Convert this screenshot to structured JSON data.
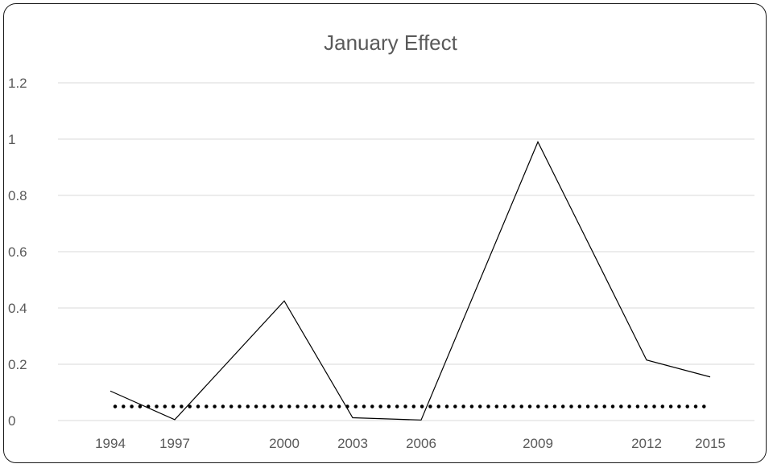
{
  "chart_data": {
    "type": "line",
    "title": "January Effect",
    "xlabel": "",
    "ylabel": "",
    "x": [
      1994,
      1997,
      2000,
      2003,
      2006,
      2009,
      2012,
      2015
    ],
    "xlim": [
      1994,
      2015
    ],
    "ylim": [
      0,
      1.2
    ],
    "x_ticks": [
      "1994",
      "1997",
      "2000",
      "2003",
      "2006",
      "2009",
      "2012",
      "2015"
    ],
    "y_ticks": [
      "0",
      "0.2",
      "0.4",
      "0.6",
      "0.8",
      "1",
      "1.2"
    ],
    "y_tick_values": [
      0,
      0.2,
      0.4,
      0.6,
      0.8,
      1.0,
      1.2
    ],
    "grid": true,
    "legend": "none",
    "series": [
      {
        "style": "solid",
        "color": "#000000",
        "values": [
          0.105,
          0.003,
          0.425,
          0.01,
          0.002,
          0.99,
          0.215,
          0.155
        ]
      },
      {
        "style": "dotted",
        "color": "#000000",
        "values": [
          0.05,
          0.05,
          0.05,
          0.05,
          0.05,
          0.05,
          0.05,
          0.05
        ]
      }
    ],
    "colors": {
      "grid": "#d9d9d9",
      "text": "#595959",
      "line": "#000000"
    }
  }
}
